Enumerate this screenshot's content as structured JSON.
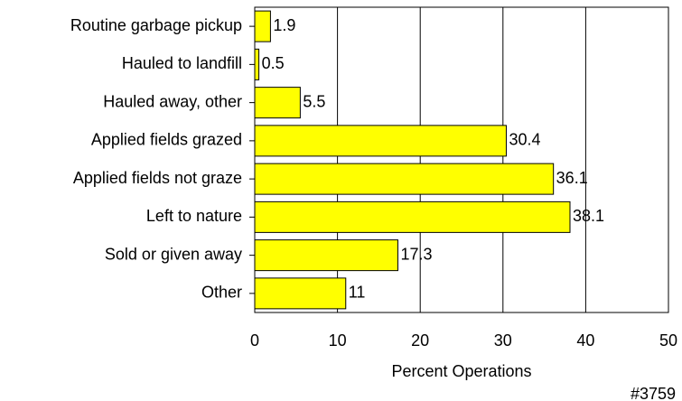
{
  "chart_data": {
    "type": "bar",
    "orientation": "horizontal",
    "categories": [
      "Routine garbage pickup",
      "Hauled to landfill",
      "Hauled away, other",
      "Applied fields grazed",
      "Applied fields not graze",
      "Left to nature",
      "Sold or given away",
      "Other"
    ],
    "values": [
      1.9,
      0.5,
      5.5,
      30.4,
      36.1,
      38.1,
      17.3,
      11
    ],
    "color": "#ffff00",
    "xlim": [
      0,
      50
    ],
    "xticks": [
      0,
      10,
      20,
      30,
      40,
      50
    ],
    "grid": true,
    "x_label": "Percent Operations",
    "annotation": "#3759"
  }
}
